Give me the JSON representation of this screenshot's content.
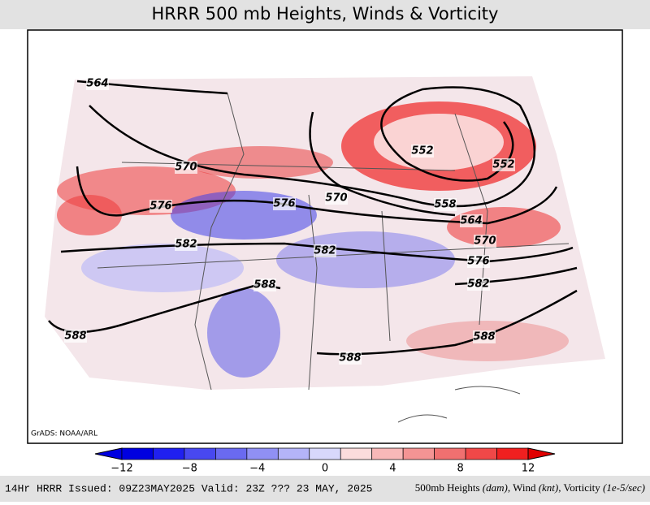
{
  "header": {
    "title": "HRRR 500 mb Heights, Winds & Vorticity"
  },
  "map": {
    "credit": "GrADS: NOAA/ARL",
    "contour_labels": [
      "564",
      "570",
      "576",
      "576",
      "570",
      "552",
      "552",
      "558",
      "564",
      "570",
      "582",
      "582",
      "576",
      "582",
      "588",
      "588",
      "588",
      "588"
    ]
  },
  "colorbar": {
    "colors": [
      "#e00000",
      "#0000e0",
      "#2020f0",
      "#4848f0",
      "#6a6af0",
      "#9090f4",
      "#b4b4f8",
      "#d8d8fc",
      "#fcdcdc",
      "#f8b8b8",
      "#f49494",
      "#f07070",
      "#f04848",
      "#f02020",
      "#e00000"
    ],
    "tick_labels": [
      "−12",
      "−8",
      "−4",
      "0",
      "4",
      "8",
      "12"
    ]
  },
  "footer": {
    "left": "14Hr HRRR Issued: 09Z23MAY2025 Valid: 23Z ??? 23 MAY, 2025",
    "right": [
      "500mb Heights ",
      "(dam)",
      ", Wind ",
      "(knt)",
      ", Vorticity ",
      "(1e-5/sec)"
    ]
  }
}
